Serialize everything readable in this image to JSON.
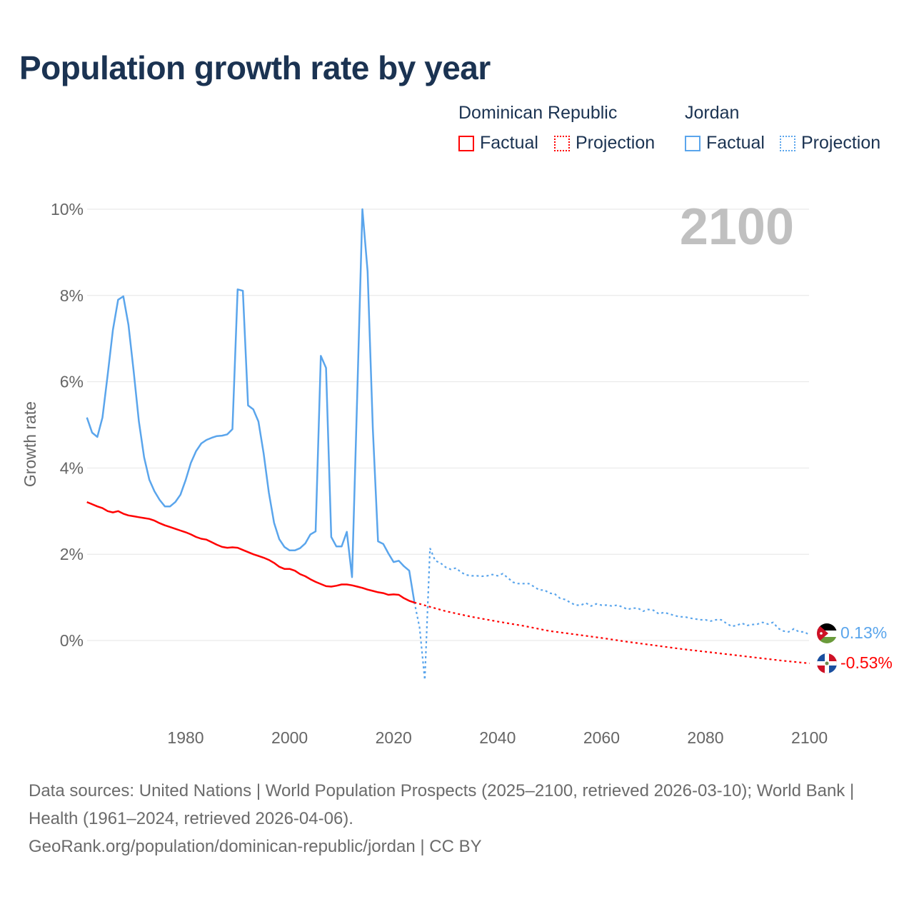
{
  "title": "Population growth rate by year",
  "legend": {
    "groups": [
      {
        "name": "Dominican Republic",
        "color": "#ff0000",
        "factual": "Factual",
        "projection": "Projection"
      },
      {
        "name": "Jordan",
        "color": "#5aa5ec",
        "factual": "Factual",
        "projection": "Projection"
      }
    ]
  },
  "footer": {
    "sources": "Data sources: United Nations | World Population Prospects (2025–2100, retrieved 2026-03-10); World Bank | Health (1961–2024, retrieved 2026-04-06).",
    "link": "GeoRank.org/population/dominican-republic/jordan | CC BY"
  },
  "chart_data": {
    "type": "line",
    "title": "Population growth rate by year",
    "xlabel": "",
    "ylabel": "Growth rate",
    "xlim": [
      1961,
      2100
    ],
    "ylim": [
      -1,
      10
    ],
    "year_label": "2100",
    "x_ticks": [
      "1980",
      "2000",
      "2020",
      "2040",
      "2060",
      "2080",
      "2100"
    ],
    "y_ticks": [
      {
        "v": 0,
        "label": "0%"
      },
      {
        "v": 2,
        "label": "2%"
      },
      {
        "v": 4,
        "label": "4%"
      },
      {
        "v": 6,
        "label": "6%"
      },
      {
        "v": 8,
        "label": "8%"
      },
      {
        "v": 10,
        "label": "10%"
      }
    ],
    "grid": true,
    "series": [
      {
        "name": "Jordan",
        "color": "#5aa5ec",
        "end_label": "0.13%",
        "factual": {
          "start_year": 1961,
          "values": [
            5.17,
            4.82,
            4.72,
            5.17,
            6.16,
            7.2,
            7.9,
            7.98,
            7.32,
            6.24,
            5.08,
            4.25,
            3.73,
            3.46,
            3.26,
            3.11,
            3.11,
            3.21,
            3.38,
            3.72,
            4.12,
            4.39,
            4.57,
            4.65,
            4.7,
            4.74,
            4.75,
            4.78,
            4.9,
            8.14,
            8.11,
            5.45,
            5.36,
            5.08,
            4.34,
            3.43,
            2.73,
            2.35,
            2.17,
            2.09,
            2.09,
            2.14,
            2.25,
            2.46,
            2.53,
            6.6,
            6.32,
            2.4,
            2.18,
            2.18,
            2.52,
            1.47,
            5.7,
            10.0,
            8.56,
            4.92,
            2.3,
            2.24,
            2.02,
            1.82,
            1.85,
            1.72,
            1.62,
            0.89
          ]
        },
        "projection": {
          "start_year": 2024,
          "values": [
            0.89,
            0.3,
            -0.91,
            2.14,
            1.85,
            1.8,
            1.7,
            1.65,
            1.68,
            1.58,
            1.52,
            1.5,
            1.5,
            1.49,
            1.5,
            1.53,
            1.5,
            1.55,
            1.45,
            1.35,
            1.32,
            1.32,
            1.32,
            1.25,
            1.17,
            1.17,
            1.1,
            1.08,
            0.98,
            0.95,
            0.88,
            0.82,
            0.82,
            0.87,
            0.8,
            0.85,
            0.82,
            0.82,
            0.8,
            0.82,
            0.78,
            0.72,
            0.75,
            0.75,
            0.68,
            0.72,
            0.7,
            0.62,
            0.65,
            0.62,
            0.58,
            0.55,
            0.55,
            0.52,
            0.5,
            0.48,
            0.48,
            0.45,
            0.48,
            0.48,
            0.4,
            0.33,
            0.35,
            0.4,
            0.35,
            0.37,
            0.38,
            0.42,
            0.38,
            0.42,
            0.28,
            0.22,
            0.2,
            0.27,
            0.2,
            0.2,
            0.13
          ]
        }
      },
      {
        "name": "Dominican Republic",
        "color": "#ff0000",
        "end_label": "-0.53%",
        "factual": {
          "start_year": 1961,
          "values": [
            3.21,
            3.16,
            3.11,
            3.07,
            3.0,
            2.97,
            3.0,
            2.94,
            2.9,
            2.88,
            2.86,
            2.84,
            2.82,
            2.78,
            2.72,
            2.67,
            2.63,
            2.59,
            2.55,
            2.51,
            2.46,
            2.4,
            2.36,
            2.34,
            2.28,
            2.22,
            2.17,
            2.15,
            2.16,
            2.15,
            2.1,
            2.05,
            2.0,
            1.96,
            1.92,
            1.87,
            1.8,
            1.71,
            1.66,
            1.66,
            1.62,
            1.54,
            1.49,
            1.42,
            1.36,
            1.31,
            1.26,
            1.25,
            1.27,
            1.3,
            1.3,
            1.28,
            1.25,
            1.22,
            1.18,
            1.15,
            1.12,
            1.1,
            1.06,
            1.07,
            1.06,
            0.98,
            0.92,
            0.88
          ]
        },
        "projection": {
          "x": [
            2024,
            2025,
            2030,
            2035,
            2040,
            2045,
            2050,
            2055,
            2060,
            2065,
            2070,
            2075,
            2080,
            2085,
            2090,
            2095,
            2100
          ],
          "values": [
            0.88,
            0.85,
            0.68,
            0.55,
            0.44,
            0.34,
            0.22,
            0.14,
            0.06,
            -0.03,
            -0.11,
            -0.19,
            -0.26,
            -0.33,
            -0.4,
            -0.47,
            -0.53
          ]
        }
      }
    ]
  }
}
